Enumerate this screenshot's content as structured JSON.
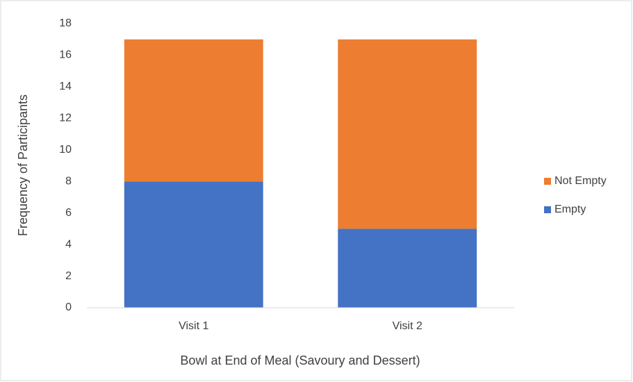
{
  "chart_data": {
    "type": "stacked_bar",
    "categories": [
      "Visit 1",
      "Visit 2"
    ],
    "series": [
      {
        "name": "Empty",
        "color": "#4472c4",
        "values": [
          8,
          5
        ]
      },
      {
        "name": "Not Empty",
        "color": "#ed7d31",
        "values": [
          9,
          12
        ]
      }
    ],
    "xlabel": "Bowl at End of Meal (Savoury and Dessert)",
    "ylabel": "Frequency of Participants",
    "ylim": [
      0,
      18
    ],
    "yticks": [
      0,
      2,
      4,
      6,
      8,
      10,
      12,
      14,
      16,
      18
    ],
    "grid": false,
    "legend": "right"
  }
}
